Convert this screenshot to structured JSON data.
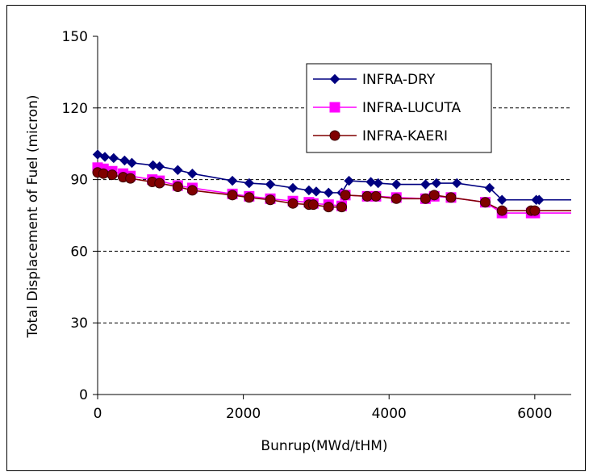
{
  "chart_data": {
    "type": "line",
    "title": "",
    "xlabel": "Bunrup(MWd/tHM)",
    "ylabel": "Total Displacement of Fuel (micron)",
    "xlim": [
      0,
      6500
    ],
    "ylim": [
      0,
      150
    ],
    "x_ticks": [
      0,
      2000,
      4000,
      6000
    ],
    "y_ticks": [
      0,
      30,
      60,
      90,
      120,
      150
    ],
    "grid": "horizontal dashed",
    "legend_position": "top-right",
    "series": [
      {
        "name": "INFRA-DRY",
        "color": "#000080",
        "marker": "diamond",
        "x": [
          0,
          100,
          220,
          370,
          470,
          760,
          850,
          1100,
          1300,
          1850,
          2080,
          2370,
          2680,
          2900,
          3000,
          3170,
          3350,
          3450,
          3750,
          3850,
          4100,
          4500,
          4650,
          4930,
          5380,
          5550,
          6020,
          6060,
          6500
        ],
        "y": [
          100.5,
          99.5,
          99,
          98,
          97,
          96,
          95.5,
          94,
          92.5,
          89.5,
          88.5,
          88,
          86.5,
          85.5,
          85,
          84.5,
          84.5,
          89.5,
          89,
          88.5,
          88,
          88,
          88.5,
          88.5,
          86.5,
          81.5,
          81.5,
          81.5,
          81.5
        ]
      },
      {
        "name": "INFRA-LUCUTA",
        "color": "#ff00ff",
        "marker": "square",
        "x": [
          0,
          80,
          200,
          350,
          450,
          750,
          850,
          1100,
          1300,
          1850,
          2080,
          2370,
          2680,
          2900,
          2960,
          3170,
          3350,
          3400,
          3700,
          3820,
          4100,
          4500,
          4620,
          4850,
          5320,
          5550,
          5950,
          6000,
          6500
        ],
        "y": [
          95,
          94.5,
          93.5,
          92.5,
          91.5,
          90,
          89.5,
          87.5,
          86.5,
          84,
          83,
          82,
          81,
          80.5,
          80,
          79.5,
          79,
          83.5,
          83,
          83,
          82.5,
          82,
          83,
          82.5,
          80.5,
          76,
          76,
          76,
          76
        ]
      },
      {
        "name": "INFRA-KAERI",
        "color": "#800000",
        "marker": "circle",
        "x": [
          0,
          80,
          200,
          350,
          450,
          750,
          850,
          1100,
          1300,
          1850,
          2080,
          2370,
          2680,
          2900,
          2960,
          3170,
          3350,
          3400,
          3700,
          3820,
          4100,
          4500,
          4620,
          4850,
          5320,
          5550,
          5950,
          6000,
          6500
        ],
        "y": [
          93,
          92.5,
          92,
          91,
          90.5,
          89,
          88.5,
          87,
          85.5,
          83.5,
          82.5,
          81.5,
          80,
          79.5,
          79.5,
          78.5,
          78.5,
          83.5,
          83,
          83,
          82,
          82,
          83.5,
          82.5,
          80.5,
          77,
          77,
          77,
          77
        ]
      }
    ]
  }
}
